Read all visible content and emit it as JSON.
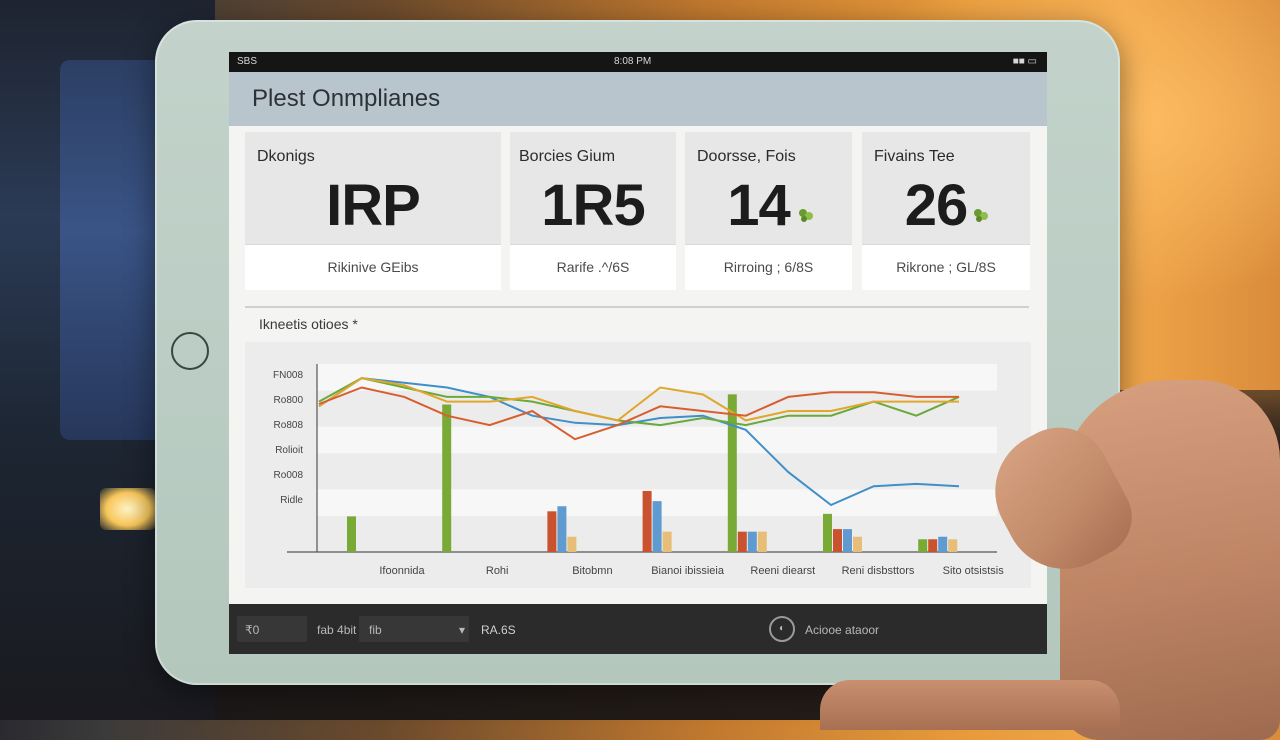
{
  "status_bar": {
    "left": "SBS",
    "center": "8:08 PM",
    "right": "■■ ▭"
  },
  "app": {
    "title": "Plest Onmplianes"
  },
  "cards": [
    {
      "label": "Dkonigs",
      "value": "IRP",
      "footer": "Rikinive GEibs",
      "icon": ""
    },
    {
      "label": "Borcies Gium",
      "value": "1R5",
      "footer": "Rarife .^/6S",
      "icon": ""
    },
    {
      "label": "Doorsse, Fois",
      "value": "14",
      "footer": "Rirroing ; 6/8S",
      "icon": "leaf-icon"
    },
    {
      "label": "Fivains Tee",
      "value": "26",
      "footer": "Rikrone ; GL/8S",
      "icon": "leaf-icon"
    }
  ],
  "chart_section": {
    "title": "Ikneetis otioes *"
  },
  "chart_data": {
    "type": "line+bar",
    "y_tick_labels": [
      "FN008",
      "Ro800",
      "Ro808",
      "Rolioit",
      "Ro008",
      "Ridle"
    ],
    "categories": [
      "Ifoonnida",
      "Rohi",
      "Bitobmn",
      "Bianoi ibissieia",
      "Reeni diearst",
      "Reni disbsttors",
      "Sito otsistsis"
    ],
    "line_series": [
      {
        "color": "#3f8fc8",
        "values": [
          62,
          74,
          72,
          70,
          66,
          58,
          55,
          54,
          57,
          58,
          52,
          34,
          20,
          28,
          29,
          28
        ]
      },
      {
        "color": "#6aa93a",
        "values": [
          64,
          74,
          70,
          66,
          66,
          64,
          60,
          56,
          54,
          57,
          54,
          58,
          58,
          64,
          58,
          66
        ]
      },
      {
        "color": "#e0a72c",
        "values": [
          62,
          74,
          71,
          64,
          64,
          66,
          60,
          56,
          70,
          67,
          56,
          60,
          60,
          64,
          64,
          64
        ]
      },
      {
        "color": "#d75f2f",
        "values": [
          63,
          70,
          66,
          58,
          54,
          60,
          48,
          54,
          62,
          60,
          58,
          66,
          68,
          68,
          66,
          66
        ]
      }
    ],
    "bar_groups": [
      {
        "values": [
          14,
          0,
          0,
          0
        ]
      },
      {
        "values": [
          58,
          0,
          0,
          0
        ]
      },
      {
        "values": [
          0,
          16,
          18,
          6
        ]
      },
      {
        "values": [
          0,
          24,
          20,
          8
        ]
      },
      {
        "values": [
          62,
          8,
          8,
          8
        ]
      },
      {
        "values": [
          15,
          9,
          9,
          6
        ]
      },
      {
        "values": [
          5,
          5,
          6,
          5
        ]
      }
    ],
    "bar_colors": [
      "#7aaa36",
      "#c8532e",
      "#5f9bd0",
      "#e6be78"
    ],
    "grid": true
  },
  "bottom_bar": {
    "field1": "₹0",
    "field2": "fab 4bit",
    "field3": "fib",
    "chevron": "▾",
    "label": "RA.6S",
    "circle": "◐",
    "right_text": "Aciooe  ataoor"
  }
}
